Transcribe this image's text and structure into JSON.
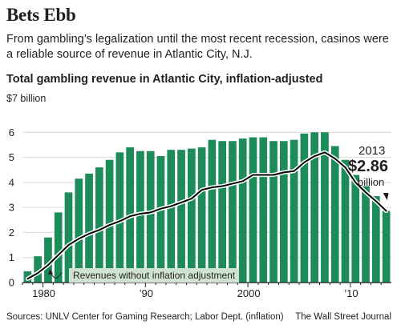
{
  "title": "Bets Ebb",
  "subtitle": "From gambling’s legalization until the most recent recession, casinos were a reliable source of revenue in Atlantic City, N.J.",
  "source": "Sources: UNLV Center for Gaming Research; Labor Dept. (inflation)",
  "credit": "The Wall Street Journal",
  "colors": {
    "bar": "#1e8c5a",
    "line": "#000000",
    "box": "#cfe3cf",
    "grid": "#d9d9d9"
  },
  "chart_data": {
    "type": "bar",
    "title": "Total gambling revenue in Atlantic City, inflation-adjusted",
    "unit_label": "$7 billion",
    "ylim": [
      0,
      7
    ],
    "y_ticks": [
      0,
      1,
      2,
      3,
      4,
      5,
      6
    ],
    "y_tick_labels": [
      "0",
      "1",
      "2",
      "3",
      "4",
      "5",
      "6"
    ],
    "x_tick_years": [
      1980,
      1990,
      2000,
      2010
    ],
    "x_tick_labels": [
      "1980",
      "’90",
      "2000",
      "’10"
    ],
    "grid": true,
    "categories": [
      1978,
      1979,
      1980,
      1981,
      1982,
      1983,
      1984,
      1985,
      1986,
      1987,
      1988,
      1989,
      1990,
      1991,
      1992,
      1993,
      1994,
      1995,
      1996,
      1997,
      1998,
      1999,
      2000,
      2001,
      2002,
      2003,
      2004,
      2005,
      2006,
      2007,
      2008,
      2009,
      2010,
      2011,
      2012,
      2013
    ],
    "series": [
      {
        "values": [
          0.45,
          1.05,
          1.8,
          2.8,
          3.6,
          4.15,
          4.35,
          4.6,
          4.9,
          5.2,
          5.4,
          5.25,
          5.25,
          5.05,
          5.3,
          5.3,
          5.35,
          5.4,
          5.7,
          5.65,
          5.65,
          5.75,
          5.8,
          5.8,
          5.65,
          5.65,
          5.7,
          5.95,
          6.0,
          6.0,
          5.45,
          4.9,
          4.3,
          3.85,
          3.45,
          2.86
        ]
      },
      {
        "name": "Revenues without inflation adjustment",
        "values": [
          0.15,
          0.38,
          0.7,
          1.1,
          1.5,
          1.75,
          1.95,
          2.1,
          2.3,
          2.45,
          2.65,
          2.75,
          2.8,
          2.95,
          3.05,
          3.2,
          3.35,
          3.7,
          3.8,
          3.85,
          3.95,
          4.05,
          4.3,
          4.3,
          4.3,
          4.4,
          4.45,
          4.8,
          5.05,
          5.2,
          4.95,
          4.6,
          4.0,
          3.6,
          3.25,
          2.86
        ]
      }
    ],
    "annotation": {
      "year": "2013",
      "value": "$2.86",
      "unit": "billion"
    }
  }
}
